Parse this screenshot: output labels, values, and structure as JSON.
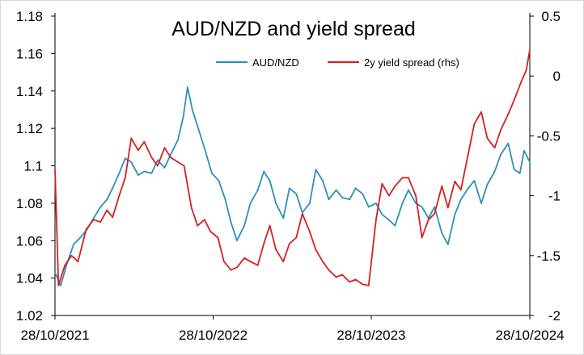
{
  "chart_data": {
    "type": "line",
    "title": "AUD/NZD and yield spread",
    "xlabel": "",
    "ylabel": "",
    "x_ticks": [
      "28/10/2021",
      "28/10/2022",
      "28/10/2023",
      "28/10/2024"
    ],
    "x_range": [
      "2021-10-28",
      "2024-10-28"
    ],
    "y_left": {
      "range": [
        1.02,
        1.18
      ],
      "ticks": [
        "1.18",
        "1.16",
        "1.14",
        "1.12",
        "1.1",
        "1.08",
        "1.06",
        "1.04",
        "1.02"
      ]
    },
    "y_right": {
      "range": [
        -2,
        0.5
      ],
      "ticks": [
        "0.5",
        "0",
        "-0.5",
        "-1",
        "-1.5",
        "-2"
      ]
    },
    "grid": false,
    "legend_position": "top-center",
    "series": [
      {
        "name": "AUD/NZD",
        "axis": "left",
        "color": "#2E8FB8",
        "points": [
          [
            "2021-10-28",
            1.043
          ],
          [
            "2021-11-10",
            1.036
          ],
          [
            "2021-11-25",
            1.048
          ],
          [
            "2021-12-10",
            1.058
          ],
          [
            "2021-12-27",
            1.062
          ],
          [
            "2022-01-10",
            1.066
          ],
          [
            "2022-01-25",
            1.072
          ],
          [
            "2022-02-10",
            1.078
          ],
          [
            "2022-02-25",
            1.082
          ],
          [
            "2022-03-10",
            1.088
          ],
          [
            "2022-03-25",
            1.096
          ],
          [
            "2022-04-08",
            1.104
          ],
          [
            "2022-04-22",
            1.102
          ],
          [
            "2022-05-08",
            1.095
          ],
          [
            "2022-05-22",
            1.097
          ],
          [
            "2022-06-08",
            1.096
          ],
          [
            "2022-06-22",
            1.103
          ],
          [
            "2022-07-08",
            1.099
          ],
          [
            "2022-07-22",
            1.106
          ],
          [
            "2022-08-08",
            1.114
          ],
          [
            "2022-08-20",
            1.126
          ],
          [
            "2022-08-30",
            1.142
          ],
          [
            "2022-09-10",
            1.13
          ],
          [
            "2022-09-25",
            1.119
          ],
          [
            "2022-10-10",
            1.108
          ],
          [
            "2022-10-25",
            1.096
          ],
          [
            "2022-11-10",
            1.092
          ],
          [
            "2022-11-25",
            1.082
          ],
          [
            "2022-12-08",
            1.07
          ],
          [
            "2022-12-22",
            1.06
          ],
          [
            "2023-01-08",
            1.068
          ],
          [
            "2023-01-22",
            1.08
          ],
          [
            "2023-02-08",
            1.087
          ],
          [
            "2023-02-22",
            1.097
          ],
          [
            "2023-03-08",
            1.092
          ],
          [
            "2023-03-22",
            1.08
          ],
          [
            "2023-04-08",
            1.072
          ],
          [
            "2023-04-22",
            1.088
          ],
          [
            "2023-05-08",
            1.085
          ],
          [
            "2023-05-22",
            1.075
          ],
          [
            "2023-06-08",
            1.08
          ],
          [
            "2023-06-22",
            1.098
          ],
          [
            "2023-07-08",
            1.092
          ],
          [
            "2023-07-22",
            1.082
          ],
          [
            "2023-08-08",
            1.087
          ],
          [
            "2023-08-22",
            1.083
          ],
          [
            "2023-09-08",
            1.082
          ],
          [
            "2023-09-22",
            1.088
          ],
          [
            "2023-10-08",
            1.085
          ],
          [
            "2023-10-22",
            1.078
          ],
          [
            "2023-11-08",
            1.08
          ],
          [
            "2023-11-22",
            1.074
          ],
          [
            "2023-12-08",
            1.071
          ],
          [
            "2023-12-22",
            1.068
          ],
          [
            "2024-01-08",
            1.08
          ],
          [
            "2024-01-22",
            1.087
          ],
          [
            "2024-02-08",
            1.08
          ],
          [
            "2024-02-22",
            1.078
          ],
          [
            "2024-03-08",
            1.072
          ],
          [
            "2024-03-22",
            1.078
          ],
          [
            "2024-04-08",
            1.064
          ],
          [
            "2024-04-22",
            1.058
          ],
          [
            "2024-05-08",
            1.074
          ],
          [
            "2024-05-22",
            1.082
          ],
          [
            "2024-06-08",
            1.088
          ],
          [
            "2024-06-22",
            1.092
          ],
          [
            "2024-07-08",
            1.08
          ],
          [
            "2024-07-22",
            1.09
          ],
          [
            "2024-08-08",
            1.097
          ],
          [
            "2024-08-22",
            1.106
          ],
          [
            "2024-09-08",
            1.112
          ],
          [
            "2024-09-22",
            1.098
          ],
          [
            "2024-10-05",
            1.096
          ],
          [
            "2024-10-15",
            1.108
          ],
          [
            "2024-10-28",
            1.102
          ]
        ]
      },
      {
        "name": "2y yield spread (rhs)",
        "axis": "right",
        "color": "#D42020",
        "points": [
          [
            "2021-10-28",
            -0.78
          ],
          [
            "2021-11-05",
            -1.75
          ],
          [
            "2021-11-20",
            -1.58
          ],
          [
            "2021-12-05",
            -1.5
          ],
          [
            "2021-12-20",
            -1.55
          ],
          [
            "2022-01-08",
            -1.28
          ],
          [
            "2022-01-25",
            -1.2
          ],
          [
            "2022-02-10",
            -1.22
          ],
          [
            "2022-02-25",
            -1.12
          ],
          [
            "2022-03-10",
            -1.18
          ],
          [
            "2022-03-25",
            -1.0
          ],
          [
            "2022-04-08",
            -0.85
          ],
          [
            "2022-04-22",
            -0.52
          ],
          [
            "2022-05-08",
            -0.62
          ],
          [
            "2022-05-22",
            -0.55
          ],
          [
            "2022-06-08",
            -0.68
          ],
          [
            "2022-06-22",
            -0.75
          ],
          [
            "2022-07-08",
            -0.6
          ],
          [
            "2022-07-22",
            -0.68
          ],
          [
            "2022-08-08",
            -0.72
          ],
          [
            "2022-08-22",
            -0.75
          ],
          [
            "2022-09-08",
            -1.1
          ],
          [
            "2022-09-22",
            -1.25
          ],
          [
            "2022-10-08",
            -1.2
          ],
          [
            "2022-10-22",
            -1.3
          ],
          [
            "2022-11-08",
            -1.35
          ],
          [
            "2022-11-22",
            -1.55
          ],
          [
            "2022-12-08",
            -1.62
          ],
          [
            "2022-12-22",
            -1.6
          ],
          [
            "2023-01-08",
            -1.52
          ],
          [
            "2023-01-22",
            -1.55
          ],
          [
            "2023-02-08",
            -1.58
          ],
          [
            "2023-02-22",
            -1.4
          ],
          [
            "2023-03-08",
            -1.25
          ],
          [
            "2023-03-22",
            -1.45
          ],
          [
            "2023-04-08",
            -1.55
          ],
          [
            "2023-04-22",
            -1.4
          ],
          [
            "2023-05-08",
            -1.35
          ],
          [
            "2023-05-22",
            -1.15
          ],
          [
            "2023-06-08",
            -1.3
          ],
          [
            "2023-06-22",
            -1.45
          ],
          [
            "2023-07-08",
            -1.55
          ],
          [
            "2023-07-22",
            -1.62
          ],
          [
            "2023-08-08",
            -1.68
          ],
          [
            "2023-08-22",
            -1.66
          ],
          [
            "2023-09-08",
            -1.72
          ],
          [
            "2023-09-22",
            -1.7
          ],
          [
            "2023-10-08",
            -1.74
          ],
          [
            "2023-10-22",
            -1.75
          ],
          [
            "2023-11-08",
            -1.2
          ],
          [
            "2023-11-22",
            -0.9
          ],
          [
            "2023-12-08",
            -1.0
          ],
          [
            "2023-12-22",
            -0.92
          ],
          [
            "2024-01-08",
            -0.85
          ],
          [
            "2024-01-22",
            -0.85
          ],
          [
            "2024-02-08",
            -1.0
          ],
          [
            "2024-02-22",
            -1.35
          ],
          [
            "2024-03-08",
            -1.2
          ],
          [
            "2024-03-22",
            -1.15
          ],
          [
            "2024-04-08",
            -0.92
          ],
          [
            "2024-04-22",
            -1.1
          ],
          [
            "2024-05-08",
            -0.88
          ],
          [
            "2024-05-22",
            -0.95
          ],
          [
            "2024-06-08",
            -0.65
          ],
          [
            "2024-06-22",
            -0.4
          ],
          [
            "2024-07-08",
            -0.3
          ],
          [
            "2024-07-22",
            -0.52
          ],
          [
            "2024-08-08",
            -0.6
          ],
          [
            "2024-08-22",
            -0.45
          ],
          [
            "2024-09-08",
            -0.32
          ],
          [
            "2024-09-22",
            -0.2
          ],
          [
            "2024-10-08",
            -0.05
          ],
          [
            "2024-10-20",
            0.05
          ],
          [
            "2024-10-28",
            0.22
          ]
        ]
      }
    ]
  }
}
